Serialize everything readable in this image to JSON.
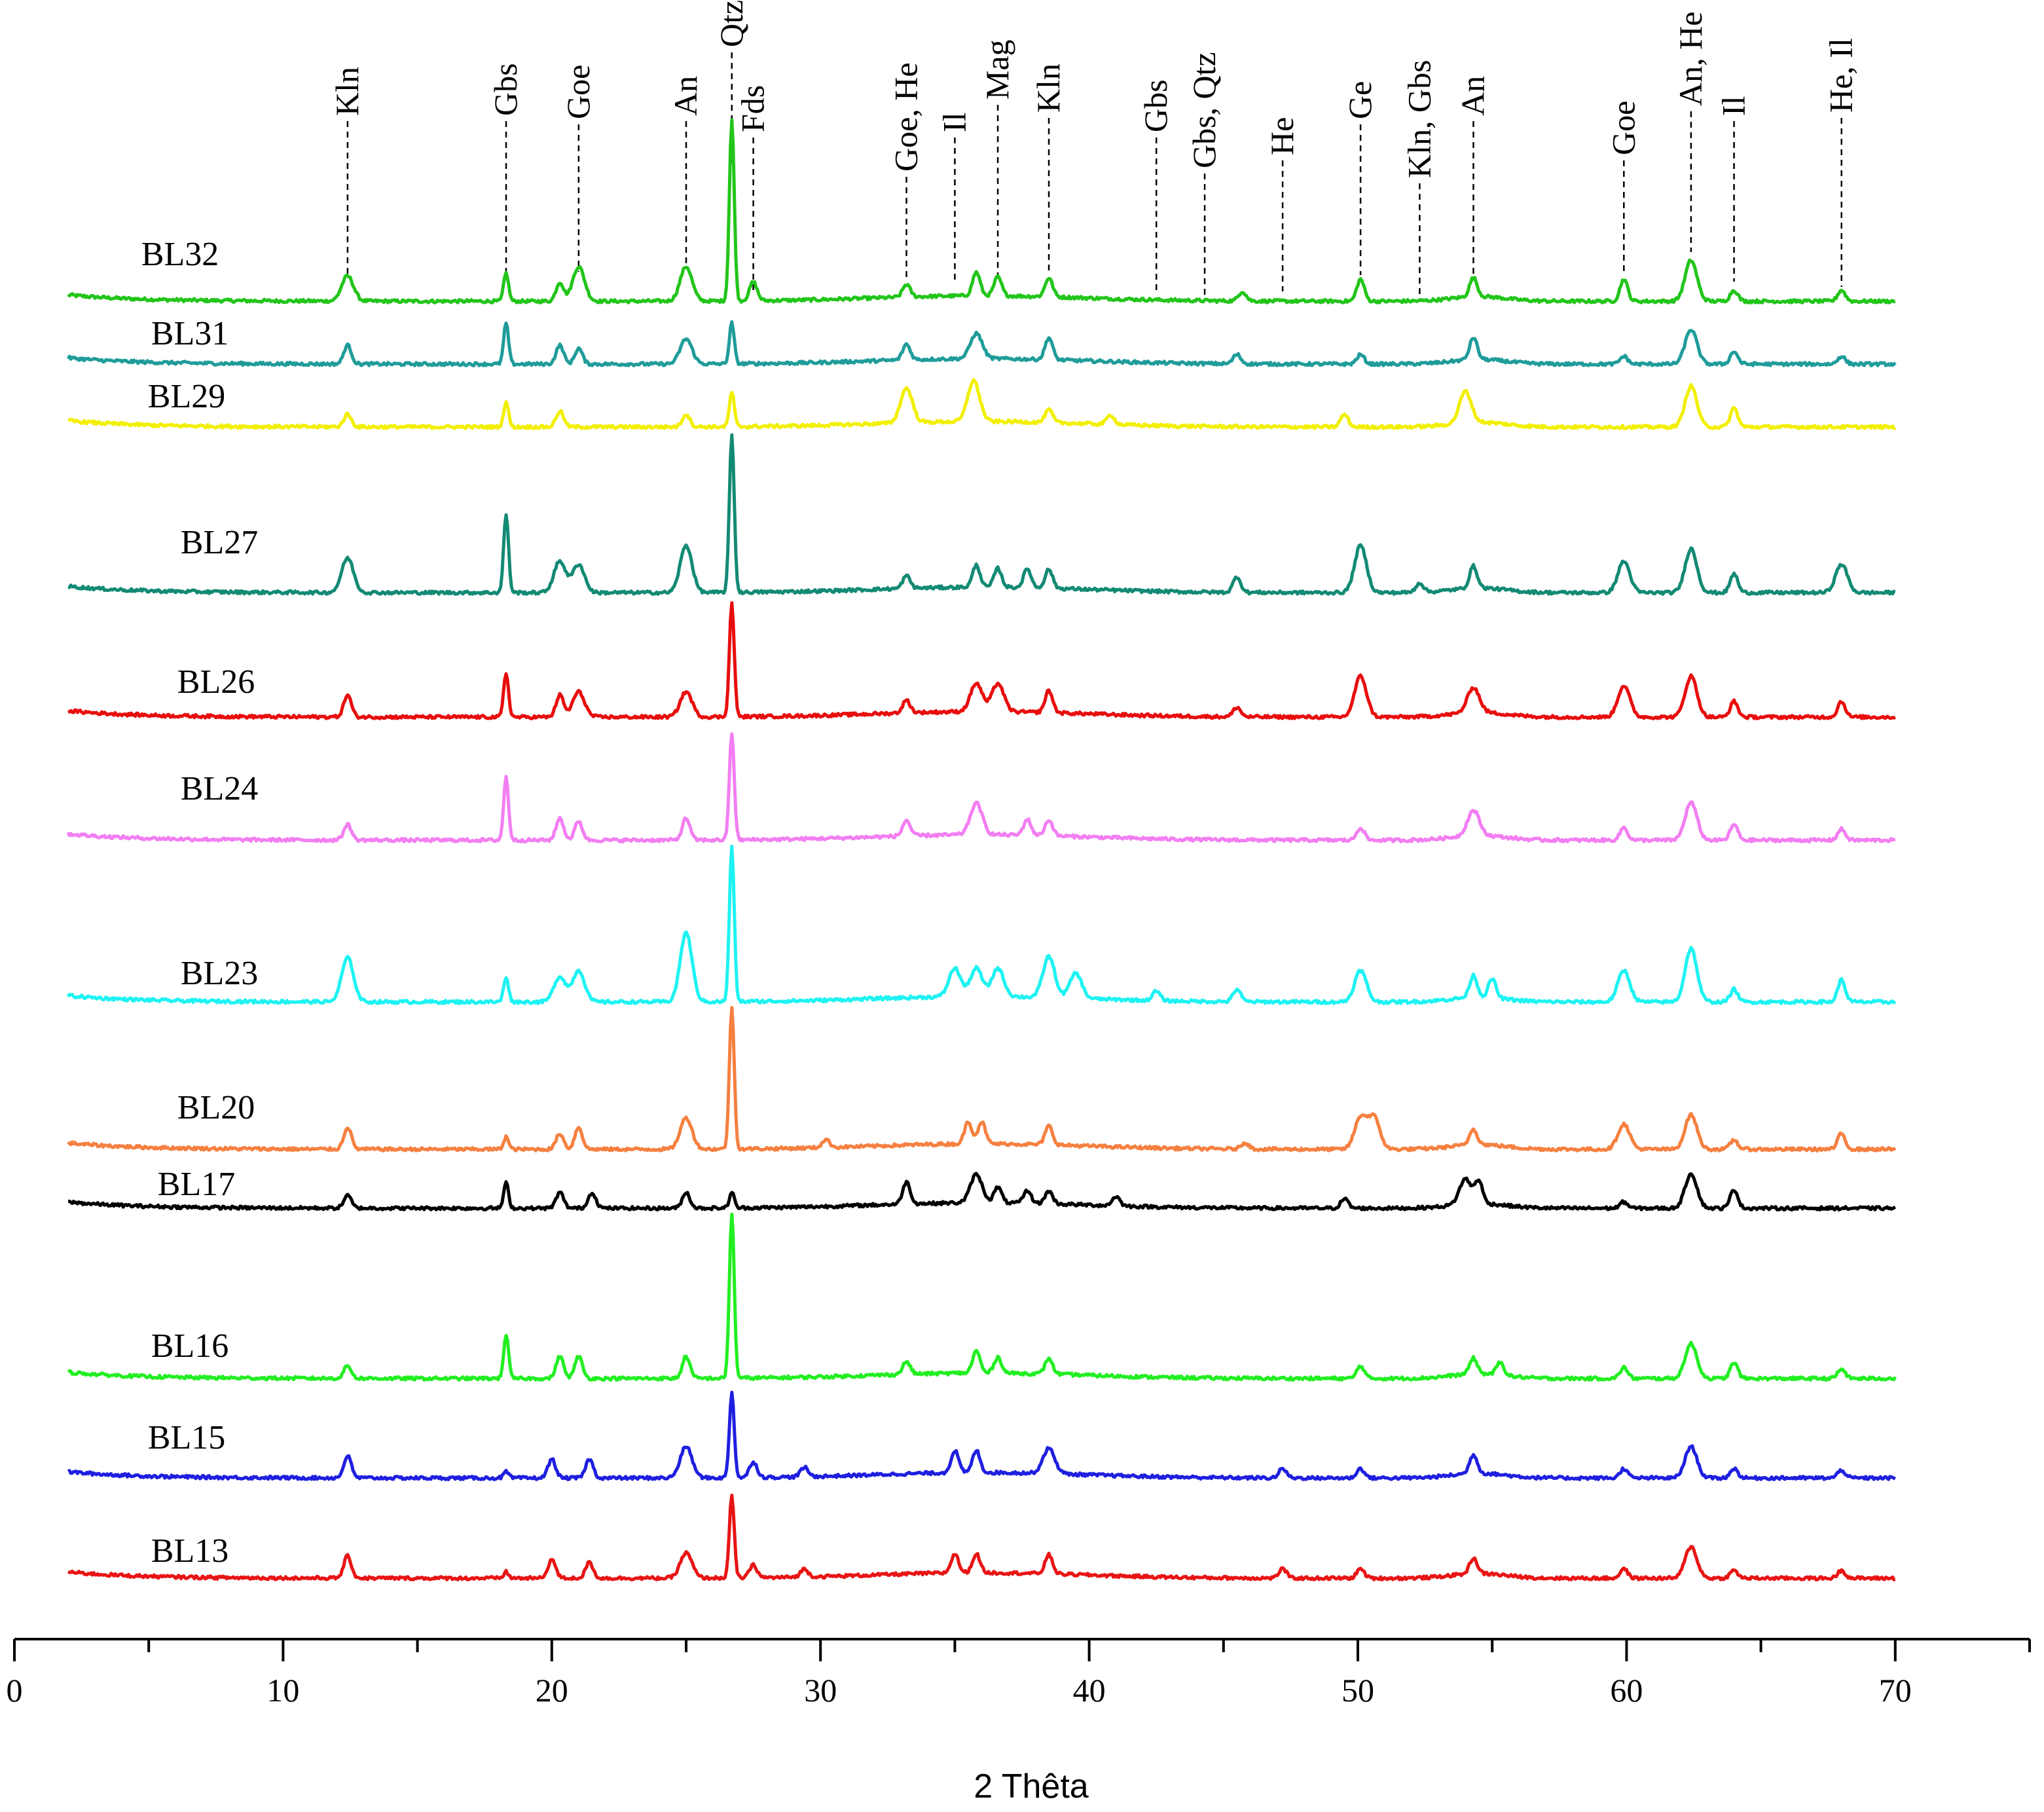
{
  "chart_data": {
    "type": "line",
    "title": "",
    "xlabel": "2 Thêta",
    "ylabel": "",
    "xlim": [
      0,
      75
    ],
    "xticks": [
      0,
      10,
      20,
      30,
      40,
      50,
      60,
      70
    ],
    "grid": false,
    "legend": "inline labels left of each trace",
    "peaks": [
      {
        "label": "Kln",
        "x": 12.4
      },
      {
        "label": "Gbs",
        "x": 18.3
      },
      {
        "label": "Goe",
        "x": 21.0
      },
      {
        "label": "An",
        "x": 25.0
      },
      {
        "label": "Qtz",
        "x": 26.7
      },
      {
        "label": "Fds",
        "x": 27.5
      },
      {
        "label": "Goe, He",
        "x": 33.2
      },
      {
        "label": "Il",
        "x": 35.0
      },
      {
        "label": "Mag",
        "x": 36.6
      },
      {
        "label": "Kln",
        "x": 38.5
      },
      {
        "label": "Gbs",
        "x": 42.5
      },
      {
        "label": "Gbs, Qtz",
        "x": 44.3
      },
      {
        "label": "He",
        "x": 47.2
      },
      {
        "label": "Ge",
        "x": 50.1
      },
      {
        "label": "Kln, Gbs",
        "x": 52.3
      },
      {
        "label": "An",
        "x": 54.3
      },
      {
        "label": "Goe",
        "x": 59.9
      },
      {
        "label": "An, He",
        "x": 62.4
      },
      {
        "label": "Il",
        "x": 64.0
      },
      {
        "label": "He, Il",
        "x": 68.0
      }
    ],
    "series": [
      {
        "name": "BL32",
        "color": "#22c51a",
        "baseline": 0.9,
        "intensities": {
          "12.4": 0.16,
          "18.3": 0.18,
          "20.3": 0.12,
          "21.0": 0.22,
          "25.0": 0.22,
          "26.7": 1.15,
          "27.5": 0.12,
          "33.2": 0.08,
          "35.8": 0.15,
          "36.6": 0.12,
          "38.5": 0.12,
          "45.7": 0.06,
          "50.1": 0.14,
          "54.3": 0.12,
          "59.9": 0.14,
          "62.4": 0.26,
          "64.0": 0.07,
          "68.0": 0.07
        }
      },
      {
        "name": "BL31",
        "color": "#1f9c9a",
        "baseline": 0.9,
        "intensities": {
          "12.4": 0.12,
          "18.3": 0.26,
          "20.3": 0.12,
          "21.0": 0.1,
          "25.0": 0.16,
          "26.7": 0.26,
          "33.2": 0.1,
          "35.8": 0.16,
          "38.5": 0.14,
          "45.5": 0.06,
          "50.1": 0.06,
          "54.3": 0.14,
          "59.9": 0.05,
          "62.4": 0.22,
          "64.0": 0.08,
          "68.0": 0.05
        }
      },
      {
        "name": "BL29",
        "color": "#f2ef00",
        "baseline": 0.9,
        "intensities": {
          "12.4": 0.08,
          "18.3": 0.16,
          "20.3": 0.1,
          "25.0": 0.08,
          "26.7": 0.22,
          "33.2": 0.22,
          "35.7": 0.26,
          "38.5": 0.08,
          "40.8": 0.06,
          "49.5": 0.08,
          "54.0": 0.2,
          "62.4": 0.26,
          "64.0": 0.12
        }
      },
      {
        "name": "BL27",
        "color": "#138a74",
        "baseline": 0.9,
        "intensities": {
          "12.4": 0.22,
          "18.3": 0.5,
          "20.3": 0.2,
          "21.0": 0.18,
          "25.0": 0.3,
          "26.7": 1.0,
          "33.2": 0.08,
          "35.8": 0.14,
          "36.6": 0.12,
          "37.7": 0.12,
          "38.5": 0.12,
          "45.5": 0.1,
          "50.1": 0.3,
          "52.3": 0.06,
          "54.3": 0.14,
          "59.9": 0.2,
          "62.4": 0.28,
          "64.0": 0.12,
          "68.0": 0.18
        }
      },
      {
        "name": "BL26",
        "color": "#e80d0d",
        "baseline": 0.9,
        "intensities": {
          "12.4": 0.14,
          "18.3": 0.28,
          "20.3": 0.14,
          "21.0": 0.16,
          "25.0": 0.16,
          "26.7": 0.72,
          "33.2": 0.08,
          "35.8": 0.18,
          "36.6": 0.18,
          "38.5": 0.14,
          "45.5": 0.06,
          "50.1": 0.26,
          "54.3": 0.16,
          "59.9": 0.2,
          "62.4": 0.26,
          "64.0": 0.1,
          "68.0": 0.1
        }
      },
      {
        "name": "BL24",
        "color": "#f27ef2",
        "baseline": 0.9,
        "intensities": {
          "12.4": 0.1,
          "18.3": 0.4,
          "20.3": 0.14,
          "21.0": 0.12,
          "25.0": 0.14,
          "26.7": 0.68,
          "33.2": 0.1,
          "35.8": 0.2,
          "37.7": 0.1,
          "38.5": 0.1,
          "50.1": 0.08,
          "54.3": 0.16,
          "59.9": 0.08,
          "62.4": 0.24,
          "64.0": 0.1,
          "68.0": 0.07
        }
      },
      {
        "name": "BL23",
        "color": "#1ef2f2",
        "baseline": 0.9,
        "intensities": {
          "12.4": 0.28,
          "18.3": 0.16,
          "20.3": 0.16,
          "21.0": 0.2,
          "25.0": 0.44,
          "26.7": 0.98,
          "35.0": 0.18,
          "35.8": 0.18,
          "36.6": 0.18,
          "38.5": 0.26,
          "39.5": 0.16,
          "42.5": 0.06,
          "45.5": 0.08,
          "50.1": 0.2,
          "54.3": 0.14,
          "55.0": 0.12,
          "59.9": 0.2,
          "62.4": 0.34,
          "64.0": 0.08,
          "68.0": 0.14
        }
      },
      {
        "name": "BL20",
        "color": "#f58040",
        "baseline": 0.9,
        "intensities": {
          "12.4": 0.14,
          "18.3": 0.08,
          "20.3": 0.1,
          "21.0": 0.14,
          "25.0": 0.2,
          "26.7": 0.9,
          "30.2": 0.05,
          "35.5": 0.14,
          "36.0": 0.14,
          "38.5": 0.12,
          "45.8": 0.04,
          "50.1": 0.2,
          "50.6": 0.2,
          "54.3": 0.1,
          "59.9": 0.16,
          "62.4": 0.22,
          "64.0": 0.06,
          "68.0": 0.1
        }
      },
      {
        "name": "BL17",
        "color": "#000000",
        "baseline": 0.9,
        "intensities": {
          "12.4": 0.08,
          "18.3": 0.16,
          "20.3": 0.1,
          "21.5": 0.1,
          "25.0": 0.1,
          "26.7": 0.1,
          "33.2": 0.14,
          "35.8": 0.18,
          "36.6": 0.1,
          "37.7": 0.08,
          "38.5": 0.08,
          "41.0": 0.06,
          "49.5": 0.06,
          "54.0": 0.16,
          "54.5": 0.14,
          "59.9": 0.04,
          "62.4": 0.22,
          "64.0": 0.12
        }
      },
      {
        "name": "BL16",
        "color": "#22ee22",
        "baseline": 0.9,
        "intensities": {
          "12.4": 0.08,
          "18.3": 0.28,
          "20.3": 0.14,
          "21.0": 0.14,
          "25.0": 0.14,
          "26.7": 1.05,
          "33.2": 0.08,
          "35.8": 0.14,
          "36.6": 0.1,
          "38.5": 0.1,
          "50.1": 0.08,
          "54.3": 0.1,
          "55.3": 0.08,
          "59.9": 0.07,
          "62.4": 0.22,
          "64.0": 0.1,
          "68.0": 0.06
        }
      },
      {
        "name": "BL15",
        "color": "#1f1fe0",
        "baseline": 0.9,
        "intensities": {
          "12.4": 0.14,
          "18.3": 0.04,
          "20.0": 0.12,
          "21.4": 0.12,
          "25.0": 0.2,
          "26.7": 0.54,
          "27.5": 0.1,
          "29.4": 0.06,
          "35.0": 0.14,
          "35.8": 0.14,
          "38.5": 0.16,
          "47.2": 0.06,
          "50.1": 0.06,
          "54.3": 0.12,
          "59.9": 0.06,
          "62.4": 0.2,
          "64.0": 0.06,
          "68.0": 0.05
        }
      },
      {
        "name": "BL13",
        "color": "#e81414",
        "baseline": 0.9,
        "intensities": {
          "12.4": 0.14,
          "18.3": 0.04,
          "20.0": 0.12,
          "21.4": 0.1,
          "25.0": 0.16,
          "26.7": 0.52,
          "27.5": 0.08,
          "29.4": 0.05,
          "35.0": 0.12,
          "35.8": 0.12,
          "38.5": 0.12,
          "47.2": 0.06,
          "50.1": 0.06,
          "54.3": 0.1,
          "59.9": 0.06,
          "62.4": 0.2,
          "64.0": 0.05,
          "68.0": 0.05
        }
      }
    ]
  }
}
